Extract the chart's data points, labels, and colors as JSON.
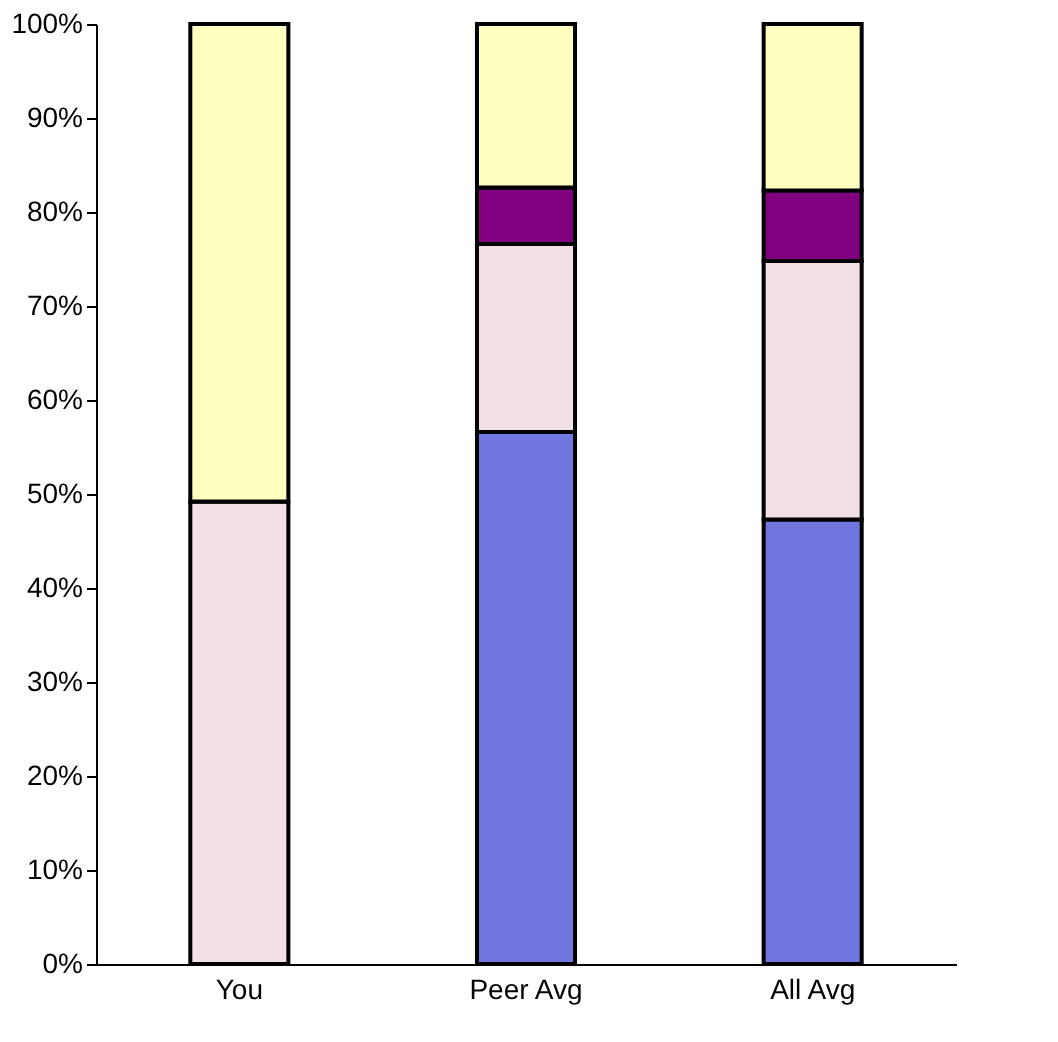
{
  "chart_data": {
    "type": "bar",
    "stacked": true,
    "categories": [
      "You",
      "Peer Avg",
      "All Avg"
    ],
    "series": [
      {
        "color": "#7078e0",
        "values": [
          0,
          56.6,
          47.3
        ]
      },
      {
        "color": "#f3dfe6",
        "values": [
          49.2,
          20,
          27.5
        ]
      },
      {
        "color": "#800080",
        "values": [
          0,
          6,
          7.5
        ]
      },
      {
        "color": "#ffffc0",
        "values": [
          50.8,
          17.4,
          17.7
        ]
      }
    ],
    "ylim": [
      0,
      100
    ],
    "yticks": [
      {
        "value": 0,
        "label": "0%"
      },
      {
        "value": 10,
        "label": "10%"
      },
      {
        "value": 20,
        "label": "20%"
      },
      {
        "value": 30,
        "label": "30%"
      },
      {
        "value": 40,
        "label": "40%"
      },
      {
        "value": 50,
        "label": "50%"
      },
      {
        "value": 60,
        "label": "60%"
      },
      {
        "value": 70,
        "label": "70%"
      },
      {
        "value": 80,
        "label": "80%"
      },
      {
        "value": 90,
        "label": "90%"
      },
      {
        "value": 100,
        "label": "100%"
      }
    ],
    "grid": false,
    "legend": false
  }
}
